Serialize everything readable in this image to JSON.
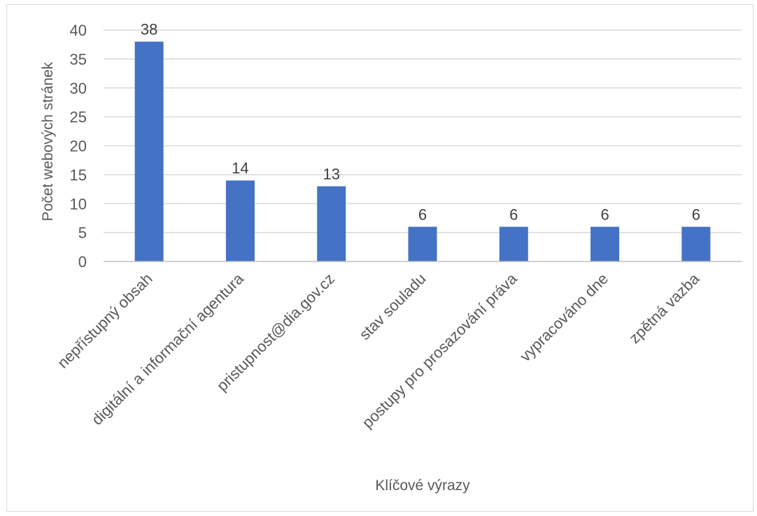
{
  "chart_data": {
    "type": "bar",
    "title": "",
    "xlabel": "Klíčové výrazy",
    "ylabel": "Počet webových stránek",
    "categories": [
      "nepřístupný obsah",
      "digitální a informační agentura",
      "pristupnost@dia.gov.cz",
      "stav souladu",
      "postupy pro prosazování práva",
      "vypracováno dne",
      "zpětná vazba"
    ],
    "values": [
      38,
      14,
      13,
      6,
      6,
      6,
      6
    ],
    "ylim": [
      0,
      40
    ],
    "yticks": [
      0,
      5,
      10,
      15,
      20,
      25,
      30,
      35,
      40
    ],
    "grid": true,
    "legend": "none",
    "colors": {
      "bar": "#4472c4",
      "grid": "#d9d9d9",
      "axis": "#bfbfbf"
    }
  }
}
